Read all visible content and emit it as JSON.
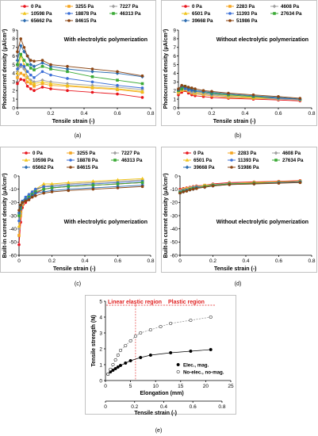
{
  "legend_a": [
    "0 Pa",
    "3255 Pa",
    "7227 Pa",
    "10598 Pa",
    "18878 Pa",
    "46313 Pa",
    "65662 Pa",
    "84615 Pa"
  ],
  "legend_b": [
    "0 Pa",
    "2283 Pa",
    "4608 Pa",
    "6501 Pa",
    "11393 Pa",
    "27634 Pa",
    "39668 Pa",
    "51986 Pa"
  ],
  "colors": [
    "#e8141c",
    "#f5a623",
    "#a0a0a0",
    "#f0c419",
    "#3b6fd6",
    "#3aaa35",
    "#2b6cb0",
    "#8b4513"
  ],
  "chart_data": [
    {
      "type": "line",
      "panel": "(a)",
      "annotation": "With electrolytic polymerization",
      "xlabel": "Tensile strain (-)",
      "ylabel": "Photocurrent density (μA/cm²)",
      "xlim": [
        0,
        0.8
      ],
      "ylim": [
        0,
        9
      ],
      "xticks": [
        "0",
        "0.2",
        "0.4",
        "0.6",
        "0.8"
      ],
      "yticks": [
        "0",
        "1",
        "2",
        "3",
        "4",
        "5",
        "6",
        "7",
        "8",
        "9"
      ],
      "legend": "top",
      "grid": false,
      "x": [
        0,
        0.02,
        0.04,
        0.06,
        0.08,
        0.1,
        0.15,
        0.2,
        0.3,
        0.45,
        0.6,
        0.75
      ],
      "series": [
        {
          "name": "0 Pa",
          "values": [
            2.8,
            3.3,
            3.2,
            2.5,
            2.2,
            2.0,
            2.4,
            2.2,
            2.0,
            1.8,
            1.6,
            1.2
          ]
        },
        {
          "name": "3255 Pa",
          "values": [
            3.5,
            4.0,
            3.8,
            3.0,
            2.8,
            2.5,
            2.8,
            2.6,
            2.5,
            2.3,
            2.1,
            1.8
          ]
        },
        {
          "name": "7227 Pa",
          "values": [
            4.2,
            4.8,
            4.5,
            3.6,
            3.2,
            3.0,
            3.2,
            3.0,
            2.8,
            2.6,
            2.4,
            2.1
          ]
        },
        {
          "name": "10598 Pa",
          "values": [
            4.0,
            6.0,
            5.0,
            3.5,
            3.0,
            2.8,
            3.0,
            2.8,
            2.6,
            2.4,
            2.2,
            1.9
          ]
        },
        {
          "name": "18878 Pa",
          "values": [
            4.5,
            5.0,
            4.8,
            4.2,
            3.8,
            3.5,
            4.2,
            3.8,
            3.4,
            3.0,
            2.6,
            2.3
          ]
        },
        {
          "name": "46313 Pa",
          "values": [
            5.0,
            6.2,
            5.5,
            5.0,
            4.6,
            4.4,
            4.8,
            4.5,
            4.2,
            3.6,
            3.2,
            2.8
          ]
        },
        {
          "name": "65662 Pa",
          "values": [
            5.5,
            7.2,
            6.5,
            6.0,
            5.0,
            4.8,
            5.2,
            4.8,
            4.5,
            4.2,
            4.0,
            3.6
          ]
        },
        {
          "name": "84615 Pa",
          "values": [
            6.5,
            8.0,
            7.0,
            6.0,
            5.5,
            5.4,
            5.5,
            5.0,
            4.8,
            4.5,
            4.2,
            3.7
          ]
        }
      ]
    },
    {
      "type": "line",
      "panel": "(b)",
      "annotation": "Without electrolytic polymerization",
      "xlabel": "Tensile strain (-)",
      "ylabel": "Photocurrent density (μA/cm²)",
      "xlim": [
        0,
        0.8
      ],
      "ylim": [
        0,
        9
      ],
      "xticks": [
        "0",
        "0.2",
        "0.4",
        "0.6",
        "0.8"
      ],
      "yticks": [
        "0",
        "1",
        "2",
        "3",
        "4",
        "5",
        "6",
        "7",
        "8",
        "9"
      ],
      "legend": "top",
      "grid": false,
      "x": [
        0,
        0.02,
        0.04,
        0.06,
        0.08,
        0.1,
        0.15,
        0.2,
        0.3,
        0.45,
        0.6,
        0.73
      ],
      "series": [
        {
          "name": "0 Pa",
          "values": [
            1.5,
            1.8,
            2.0,
            1.7,
            1.5,
            1.4,
            1.3,
            1.2,
            1.1,
            1.0,
            0.9,
            0.8
          ]
        },
        {
          "name": "2283 Pa",
          "values": [
            1.7,
            2.0,
            2.2,
            1.9,
            1.7,
            1.6,
            1.5,
            1.4,
            1.2,
            1.1,
            1.0,
            0.9
          ]
        },
        {
          "name": "4608 Pa",
          "values": [
            1.8,
            2.2,
            2.3,
            2.0,
            1.8,
            1.7,
            1.6,
            1.5,
            1.3,
            1.2,
            1.0,
            0.9
          ]
        },
        {
          "name": "6501 Pa",
          "values": [
            1.9,
            2.3,
            2.1,
            2.2,
            2.0,
            1.8,
            1.7,
            1.6,
            1.4,
            1.2,
            1.1,
            1.0
          ]
        },
        {
          "name": "11393 Pa",
          "values": [
            2.0,
            2.4,
            2.2,
            2.1,
            2.0,
            1.9,
            1.8,
            1.6,
            1.5,
            1.3,
            1.1,
            1.0
          ]
        },
        {
          "name": "27634 Pa",
          "values": [
            2.0,
            2.2,
            2.5,
            2.3,
            2.2,
            2.0,
            1.9,
            1.7,
            1.5,
            1.3,
            1.2,
            1.0
          ]
        },
        {
          "name": "39668 Pa",
          "values": [
            2.1,
            2.5,
            2.4,
            2.2,
            2.1,
            2.0,
            1.9,
            1.8,
            1.6,
            1.4,
            1.2,
            1.0
          ]
        },
        {
          "name": "51986 Pa",
          "values": [
            2.2,
            2.6,
            2.5,
            2.4,
            2.3,
            2.2,
            2.0,
            1.9,
            1.7,
            1.5,
            1.3,
            1.1
          ]
        }
      ]
    },
    {
      "type": "line",
      "panel": "(c)",
      "annotation": "With electrolytic polymerization",
      "xlabel": "Tensile strain (-)",
      "ylabel": "Built-in current density (μA/cm²)",
      "xlim": [
        0,
        0.8
      ],
      "ylim": [
        -60,
        0
      ],
      "xticks": [
        "0",
        "0.2",
        "0.4",
        "0.6",
        "0.8"
      ],
      "yticks": [
        "-60",
        "-50",
        "-40",
        "-30",
        "-20",
        "-10",
        "0"
      ],
      "legend": "top",
      "grid": false,
      "x": [
        0,
        0.01,
        0.02,
        0.04,
        0.06,
        0.08,
        0.1,
        0.15,
        0.2,
        0.3,
        0.45,
        0.6,
        0.75
      ],
      "series": [
        {
          "name": "0 Pa",
          "values": [
            -52,
            -35,
            -24,
            -20,
            -18,
            -16,
            -13,
            -10,
            -9,
            -8,
            -7,
            -6,
            -5
          ]
        },
        {
          "name": "3255 Pa",
          "values": [
            -45,
            -30,
            -22,
            -18,
            -16,
            -14,
            -11,
            -8,
            -7,
            -6,
            -5,
            -4,
            -3
          ]
        },
        {
          "name": "7227 Pa",
          "values": [
            -40,
            -28,
            -21,
            -18,
            -15,
            -13,
            -10,
            -8,
            -7,
            -6,
            -5,
            -4,
            -3
          ]
        },
        {
          "name": "10598 Pa",
          "values": [
            -38,
            -27,
            -20,
            -17,
            -14,
            -12,
            -10,
            -6,
            -6,
            -5,
            -4,
            -3,
            -2
          ]
        },
        {
          "name": "18878 Pa",
          "values": [
            -34,
            -25,
            -19,
            -16,
            -14,
            -12,
            -10,
            -8,
            -8,
            -7,
            -6,
            -5,
            -4
          ]
        },
        {
          "name": "46313 Pa",
          "values": [
            -30,
            -24,
            -20,
            -18,
            -16,
            -14,
            -12,
            -10,
            -9,
            -8,
            -7,
            -6,
            -5
          ]
        },
        {
          "name": "65662 Pa",
          "values": [
            -28,
            -23,
            -20,
            -18,
            -17,
            -15,
            -13,
            -12,
            -11,
            -10,
            -9,
            -8,
            -7
          ]
        },
        {
          "name": "84615 Pa",
          "values": [
            -26,
            -22,
            -20,
            -19,
            -18,
            -16,
            -15,
            -13,
            -12,
            -11,
            -10,
            -9,
            -8
          ]
        }
      ]
    },
    {
      "type": "line",
      "panel": "(d)",
      "annotation": "Without electrolytic polymerization",
      "xlabel": "Tensile strain (-)",
      "ylabel": "Built-in current density (μA/cm²)",
      "xlim": [
        0,
        0.8
      ],
      "ylim": [
        -60,
        0
      ],
      "xticks": [
        "0",
        "0.2",
        "0.4",
        "0.6",
        "0.8"
      ],
      "yticks": [
        "-60",
        "-50",
        "-40",
        "-30",
        "-20",
        "-10",
        "0"
      ],
      "legend": "top",
      "grid": false,
      "x": [
        0,
        0.02,
        0.04,
        0.06,
        0.08,
        0.1,
        0.15,
        0.2,
        0.3,
        0.45,
        0.6,
        0.73
      ],
      "series": [
        {
          "name": "0 Pa",
          "values": [
            -10,
            -9.5,
            -9,
            -8.5,
            -8,
            -7.5,
            -7,
            -6,
            -5,
            -4.5,
            -4,
            -3.5
          ]
        },
        {
          "name": "2283 Pa",
          "values": [
            -11,
            -10,
            -9.5,
            -9,
            -8.5,
            -8,
            -7,
            -6.5,
            -5.5,
            -5,
            -4.5,
            -4
          ]
        },
        {
          "name": "4608 Pa",
          "values": [
            -11,
            -10.5,
            -10,
            -9,
            -8.5,
            -8,
            -7.5,
            -6.5,
            -5.5,
            -5,
            -4.5,
            -4
          ]
        },
        {
          "name": "6501 Pa",
          "values": [
            -12,
            -11,
            -10,
            -9.5,
            -9,
            -8.5,
            -7.5,
            -7,
            -6,
            -5,
            -4.5,
            -4
          ]
        },
        {
          "name": "11393 Pa",
          "values": [
            -12,
            -11,
            -10.5,
            -10,
            -9,
            -8.5,
            -8,
            -7,
            -6,
            -5.5,
            -5,
            -4.5
          ]
        },
        {
          "name": "27634 Pa",
          "values": [
            -12.5,
            -11.5,
            -11,
            -10,
            -9.5,
            -9,
            -8,
            -7,
            -6,
            -5.5,
            -5,
            -4.5
          ]
        },
        {
          "name": "39668 Pa",
          "values": [
            -13,
            -12,
            -11,
            -10.5,
            -10,
            -9,
            -8.5,
            -7.5,
            -6.5,
            -6,
            -5,
            -4.5
          ]
        },
        {
          "name": "51986 Pa",
          "values": [
            -13,
            -12,
            -11.5,
            -10.5,
            -10,
            -9.5,
            -8.5,
            -7.5,
            -6.5,
            -6,
            -5.5,
            -5
          ]
        }
      ]
    },
    {
      "type": "scatter",
      "panel": "(e)",
      "xlabel": "Elongation (mm)",
      "xlabel2": "Tensile strain (-)",
      "ylabel": "Tensile strength (N)",
      "xlim": [
        0,
        25
      ],
      "ylim": [
        0,
        5
      ],
      "xticks": [
        "0",
        "5",
        "10",
        "15",
        "20",
        "25"
      ],
      "xticks2": [
        "0",
        "0.2",
        "0.4",
        "0.6",
        "0.8"
      ],
      "yticks": [
        "0",
        "1",
        "2",
        "3",
        "4",
        "5"
      ],
      "legend": "bottom-right",
      "grid": false,
      "region_labels": [
        "Linear elastic region",
        "Plastic region"
      ],
      "series": [
        {
          "name": "Elec., mag.",
          "x": [
            0.5,
            1,
            1.5,
            2,
            2.5,
            3,
            4,
            5,
            7,
            9,
            13,
            17,
            21
          ],
          "values": [
            0.4,
            0.55,
            0.65,
            0.75,
            0.85,
            0.95,
            1.1,
            1.25,
            1.45,
            1.6,
            1.75,
            1.85,
            1.95
          ]
        },
        {
          "name": "No-elec., no-mag.",
          "x": [
            0.5,
            1,
            1.5,
            2,
            2.5,
            3,
            4,
            5,
            6,
            7,
            9,
            11,
            13,
            17,
            21
          ],
          "values": [
            0.4,
            0.7,
            1.0,
            1.3,
            1.6,
            1.9,
            2.2,
            2.5,
            2.8,
            3.0,
            3.2,
            3.4,
            3.6,
            3.8,
            4.0
          ]
        }
      ]
    }
  ],
  "captions": [
    "(a)",
    "(b)",
    "(c)",
    "(d)",
    "(e)"
  ]
}
